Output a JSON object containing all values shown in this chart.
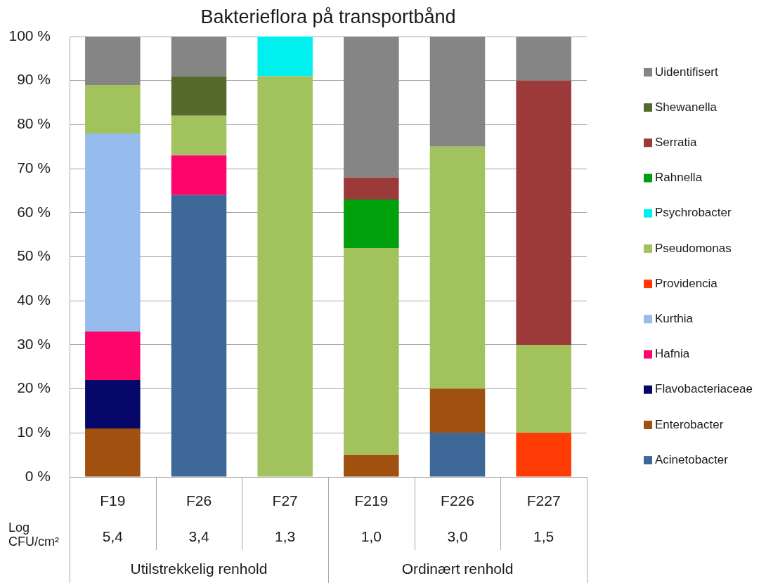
{
  "chart_data": {
    "type": "bar",
    "title": "Bakterieflora på transportbånd",
    "stacked": true,
    "categories": [
      "F19",
      "F26",
      "F27",
      "F219",
      "F226",
      "F227"
    ],
    "series": [
      {
        "name": "Acinetobacter",
        "color": "#3d6898",
        "values": [
          null,
          64,
          null,
          null,
          10,
          null
        ]
      },
      {
        "name": "Enterobacter",
        "color": "#a0500f",
        "values": [
          11,
          null,
          null,
          5,
          10,
          null
        ]
      },
      {
        "name": "Flavobacteriaceae",
        "color": "#07076a",
        "values": [
          11,
          null,
          null,
          null,
          null,
          null
        ]
      },
      {
        "name": "Hafnia",
        "color": "#fc066c",
        "values": [
          11,
          9,
          null,
          null,
          null,
          null
        ]
      },
      {
        "name": "Kurthia",
        "color": "#95bced",
        "values": [
          45,
          null,
          null,
          null,
          null,
          null
        ]
      },
      {
        "name": "Providencia",
        "color": "#ff3a05",
        "values": [
          null,
          null,
          null,
          null,
          null,
          10
        ]
      },
      {
        "name": "Pseudomonas",
        "color": "#a2c25e",
        "values": [
          11,
          9,
          91,
          47,
          55,
          20
        ]
      },
      {
        "name": "Psychrobacter",
        "color": "#00f0f0",
        "values": [
          null,
          null,
          9,
          null,
          null,
          null
        ]
      },
      {
        "name": "Rahnella",
        "color": "#00a00c",
        "values": [
          null,
          null,
          null,
          11,
          null,
          null
        ]
      },
      {
        "name": "Serratia",
        "color": "#9c3a3a",
        "values": [
          null,
          null,
          null,
          5,
          null,
          60
        ]
      },
      {
        "name": "Shewanella",
        "color": "#566a2b",
        "values": [
          null,
          9,
          null,
          null,
          null,
          null
        ]
      },
      {
        "name": "Uidentifisert",
        "color": "#858585",
        "values": [
          11,
          9,
          null,
          32,
          25,
          10
        ]
      }
    ],
    "ylim": [
      0,
      100
    ],
    "yticks": [
      {
        "value": 0,
        "label": "0 %"
      },
      {
        "value": 10,
        "label": "10 %"
      },
      {
        "value": 20,
        "label": "20 %"
      },
      {
        "value": 30,
        "label": "30 %"
      },
      {
        "value": 40,
        "label": "40 %"
      },
      {
        "value": 50,
        "label": "50 %"
      },
      {
        "value": 60,
        "label": "60 %"
      },
      {
        "value": 70,
        "label": "70 %"
      },
      {
        "value": 80,
        "label": "80 %"
      },
      {
        "value": 90,
        "label": "90 %"
      },
      {
        "value": 100,
        "label": "100 %"
      }
    ],
    "grid": "y",
    "legend": "right",
    "annotations": [
      "Log CFU/cm²",
      "5,4",
      "3,4",
      "1,3",
      "1,0",
      "3,0",
      "1,5",
      "Utilstrekkelig renhold",
      "Ordinært renhold"
    ]
  }
}
